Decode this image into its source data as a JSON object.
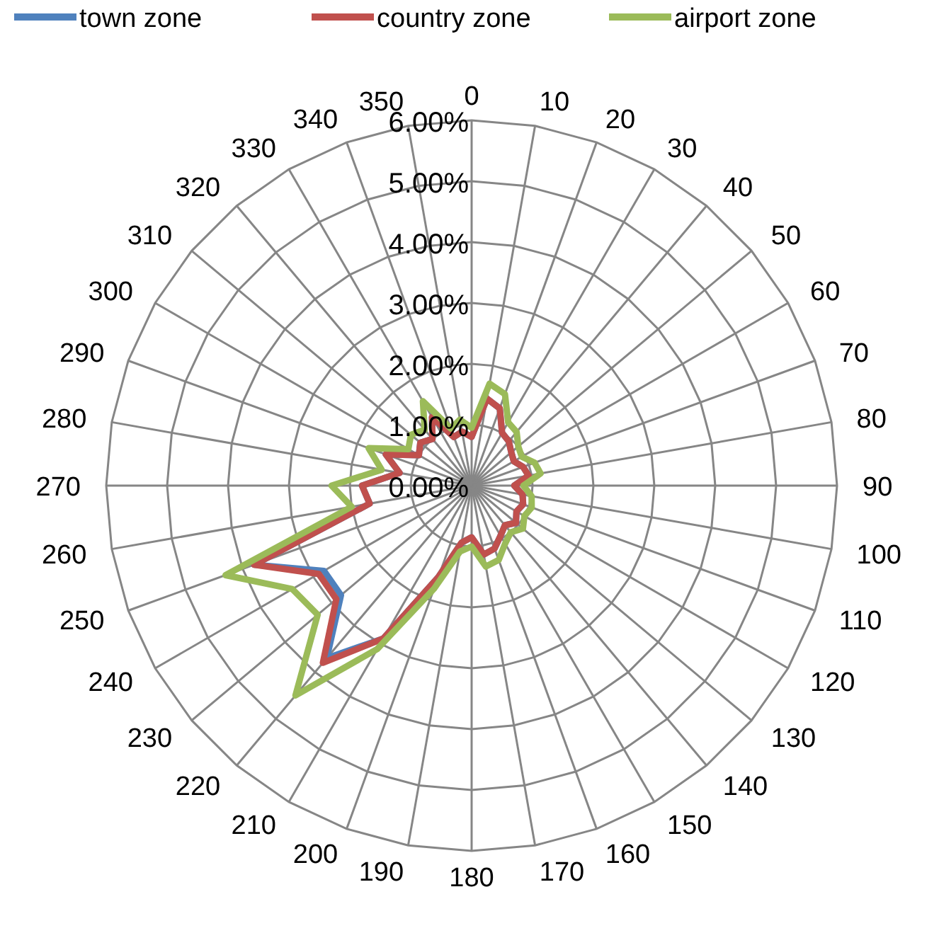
{
  "chart_data": {
    "type": "radar",
    "categories": [
      "0",
      "10",
      "20",
      "30",
      "40",
      "50",
      "60",
      "70",
      "80",
      "90",
      "100",
      "110",
      "120",
      "130",
      "140",
      "150",
      "160",
      "170",
      "180",
      "190",
      "200",
      "210",
      "220",
      "230",
      "240",
      "250",
      "260",
      "270",
      "280",
      "290",
      "300",
      "310",
      "320",
      "330",
      "340",
      "350"
    ],
    "ylim": [
      0,
      6
    ],
    "yticks": [
      {
        "value": 0,
        "label": "0.00%"
      },
      {
        "value": 1,
        "label": "1.00%"
      },
      {
        "value": 2,
        "label": "2.00%"
      },
      {
        "value": 3,
        "label": "3.00%"
      },
      {
        "value": 4,
        "label": "4.00%"
      },
      {
        "value": 5,
        "label": "5.00%"
      },
      {
        "value": 6,
        "label": "6.00%"
      }
    ],
    "grid": true,
    "legend": "top",
    "marker": "none",
    "series": [
      {
        "name": "town zone",
        "color": "#4f81bd",
        "values": [
          0.8,
          1.45,
          1.35,
          1.0,
          0.95,
          0.85,
          0.8,
          0.9,
          0.95,
          0.7,
          0.85,
          0.9,
          0.85,
          0.95,
          0.85,
          0.95,
          1.1,
          1.15,
          0.85,
          0.95,
          1.6,
          2.9,
          3.7,
          2.8,
          2.8,
          3.8,
          1.7,
          1.8,
          1.2,
          1.5,
          1.0,
          1.1,
          1.0,
          1.3,
          0.85,
          0.9
        ]
      },
      {
        "name": "country zone",
        "color": "#c0504d",
        "values": [
          0.8,
          1.45,
          1.35,
          1.0,
          0.95,
          0.85,
          0.8,
          0.9,
          0.95,
          0.7,
          0.85,
          0.9,
          0.85,
          0.95,
          0.85,
          0.95,
          1.1,
          1.15,
          0.85,
          0.95,
          1.6,
          2.9,
          3.8,
          2.9,
          2.9,
          3.8,
          1.7,
          1.8,
          1.2,
          1.5,
          1.0,
          1.1,
          1.0,
          1.3,
          0.85,
          0.9
        ]
      },
      {
        "name": "airport zone",
        "color": "#9bbb59",
        "values": [
          0.95,
          1.7,
          1.6,
          1.2,
          1.15,
          1.0,
          0.95,
          1.1,
          1.15,
          0.85,
          1.0,
          1.05,
          1.0,
          1.1,
          1.0,
          1.1,
          1.3,
          1.35,
          1.0,
          1.1,
          1.8,
          3.1,
          4.5,
          3.3,
          3.4,
          4.3,
          2.0,
          2.3,
          1.5,
          1.8,
          1.2,
          1.3,
          1.2,
          1.6,
          1.0,
          1.1
        ]
      }
    ]
  }
}
